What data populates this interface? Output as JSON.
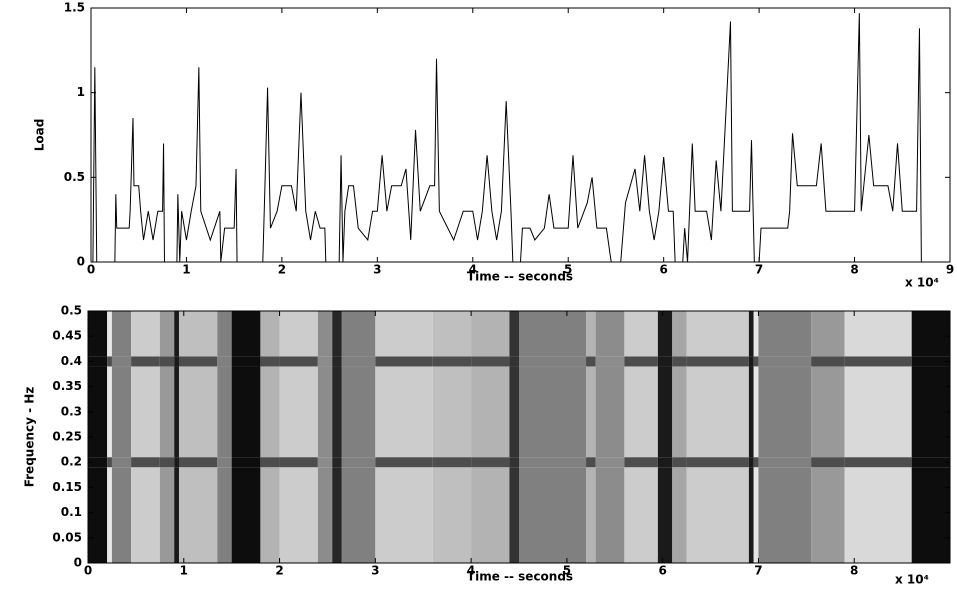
{
  "chart_data": [
    {
      "type": "line",
      "ylabel": "Load",
      "xlabel": "Time -- seconds",
      "x_multiplier": "x 10⁴",
      "xlim": [
        0,
        9
      ],
      "xticks": [
        0,
        1,
        2,
        3,
        4,
        5,
        6,
        7,
        8,
        9
      ],
      "ylim": [
        0,
        1.5
      ],
      "yticks": [
        0,
        0.5,
        1,
        1.5
      ],
      "color": "#000000",
      "x": [
        0.02,
        0.04,
        0.06,
        0.25,
        0.26,
        0.27,
        0.4,
        0.41,
        0.44,
        0.45,
        0.5,
        0.52,
        0.55,
        0.6,
        0.65,
        0.7,
        0.75,
        0.76,
        0.77,
        0.9,
        0.91,
        0.93,
        0.95,
        1.0,
        1.05,
        1.1,
        1.13,
        1.15,
        1.25,
        1.35,
        1.36,
        1.4,
        1.5,
        1.52,
        1.53,
        1.8,
        1.82,
        1.85,
        1.88,
        1.95,
        2.0,
        2.1,
        2.15,
        2.2,
        2.25,
        2.3,
        2.35,
        2.4,
        2.45,
        2.46,
        2.6,
        2.62,
        2.64,
        2.66,
        2.7,
        2.75,
        2.8,
        2.9,
        2.95,
        3.0,
        3.05,
        3.1,
        3.15,
        3.25,
        3.3,
        3.35,
        3.4,
        3.45,
        3.55,
        3.6,
        3.62,
        3.65,
        3.8,
        3.9,
        4.0,
        4.05,
        4.1,
        4.15,
        4.2,
        4.25,
        4.3,
        4.35,
        4.4,
        4.42,
        4.5,
        4.52,
        4.6,
        4.65,
        4.75,
        4.8,
        4.85,
        5.0,
        5.05,
        5.1,
        5.2,
        5.25,
        5.3,
        5.4,
        5.45,
        5.55,
        5.6,
        5.65,
        5.7,
        5.75,
        5.8,
        5.85,
        5.9,
        5.95,
        6.0,
        6.05,
        6.1,
        6.12,
        6.2,
        6.22,
        6.25,
        6.3,
        6.33,
        6.45,
        6.5,
        6.55,
        6.6,
        6.7,
        6.72,
        6.85,
        6.9,
        6.92,
        6.95,
        7.0,
        7.02,
        7.3,
        7.32,
        7.35,
        7.4,
        7.6,
        7.65,
        7.7,
        8.0,
        8.05,
        8.07,
        8.15,
        8.2,
        8.35,
        8.4,
        8.45,
        8.5,
        8.65,
        8.68,
        8.7
      ],
      "values": [
        0,
        1.15,
        0,
        0,
        0.4,
        0.2,
        0.2,
        0.3,
        0.85,
        0.45,
        0.45,
        0.3,
        0.13,
        0.3,
        0.13,
        0.3,
        0.3,
        0.7,
        0,
        0,
        0.4,
        0,
        0.3,
        0.13,
        0.3,
        0.45,
        1.15,
        0.3,
        0.13,
        0.3,
        0,
        0.2,
        0.2,
        0.55,
        0,
        0,
        0.4,
        1.03,
        0.2,
        0.3,
        0.45,
        0.45,
        0.3,
        1.0,
        0.3,
        0.13,
        0.3,
        0.2,
        0.2,
        0,
        0,
        0.63,
        0,
        0.3,
        0.45,
        0.45,
        0.2,
        0.13,
        0.3,
        0.3,
        0.63,
        0.3,
        0.45,
        0.45,
        0.55,
        0.13,
        0.78,
        0.3,
        0.45,
        0.45,
        1.2,
        0.3,
        0.13,
        0.3,
        0.3,
        0.13,
        0.3,
        0.63,
        0.3,
        0.13,
        0.3,
        0.95,
        0.3,
        0,
        0,
        0.2,
        0.2,
        0.13,
        0.2,
        0.4,
        0.2,
        0.2,
        0.63,
        0.2,
        0.35,
        0.5,
        0.2,
        0.2,
        0,
        0,
        0.35,
        0.45,
        0.55,
        0.3,
        0.63,
        0.3,
        0.13,
        0.3,
        0.62,
        0.3,
        0.3,
        0,
        0,
        0.2,
        0,
        0.7,
        0.3,
        0.3,
        0.13,
        0.6,
        0.3,
        1.42,
        0.3,
        0.3,
        0.3,
        0.72,
        0,
        0,
        0.2,
        0.2,
        0.3,
        0.76,
        0.45,
        0.45,
        0.7,
        0.3,
        0.3,
        1.47,
        0.3,
        0.75,
        0.45,
        0.45,
        0.3,
        0.7,
        0.3,
        0.3,
        1.38,
        0
      ]
    },
    {
      "type": "heatmap",
      "ylabel": "Frequency - Hz",
      "xlabel": "Time -- seconds",
      "x_multiplier": "x 10⁴",
      "xlim": [
        0,
        9
      ],
      "xticks": [
        0,
        1,
        2,
        3,
        4,
        5,
        6,
        7,
        8
      ],
      "ylim": [
        0,
        0.5
      ],
      "yticks": [
        0,
        0.05,
        0.1,
        0.15,
        0.2,
        0.25,
        0.3,
        0.35,
        0.4,
        0.45,
        0.5
      ],
      "x_bins": [
        0,
        0.2,
        0.25,
        0.45,
        0.75,
        0.9,
        0.95,
        1.35,
        1.5,
        1.8,
        2.0,
        2.4,
        2.55,
        2.65,
        3.0,
        3.6,
        4.0,
        4.4,
        4.5,
        5.2,
        5.3,
        5.6,
        5.95,
        6.1,
        6.25,
        6.9,
        6.95,
        7.0,
        7.55,
        7.9,
        8.6,
        9.0
      ],
      "y_bins": [
        0,
        0.19,
        0.21,
        0.39,
        0.41,
        0.5
      ],
      "values": [
        [
          0.05,
          0.9,
          0.5,
          0.8,
          0.6,
          0.1,
          0.75,
          0.5,
          0.05,
          0.7,
          0.8,
          0.55,
          0.15,
          0.5,
          0.8,
          0.75,
          0.7,
          0.2,
          0.5,
          0.7,
          0.55,
          0.8,
          0.1,
          0.65,
          0.8,
          0.1,
          0.9,
          0.5,
          0.6,
          0.85,
          0.05
        ],
        [
          0.05,
          0.3,
          0.5,
          0.3,
          0.3,
          0.1,
          0.3,
          0.5,
          0.05,
          0.3,
          0.3,
          0.55,
          0.15,
          0.5,
          0.3,
          0.3,
          0.3,
          0.2,
          0.5,
          0.3,
          0.55,
          0.3,
          0.1,
          0.3,
          0.3,
          0.1,
          0.3,
          0.5,
          0.3,
          0.3,
          0.05
        ],
        [
          0.05,
          0.9,
          0.5,
          0.8,
          0.6,
          0.1,
          0.75,
          0.5,
          0.05,
          0.7,
          0.8,
          0.55,
          0.15,
          0.5,
          0.8,
          0.75,
          0.7,
          0.2,
          0.5,
          0.7,
          0.55,
          0.8,
          0.1,
          0.65,
          0.8,
          0.1,
          0.9,
          0.5,
          0.6,
          0.85,
          0.05
        ],
        [
          0.05,
          0.3,
          0.5,
          0.3,
          0.3,
          0.1,
          0.3,
          0.5,
          0.05,
          0.3,
          0.3,
          0.55,
          0.15,
          0.5,
          0.3,
          0.3,
          0.3,
          0.2,
          0.5,
          0.3,
          0.55,
          0.3,
          0.1,
          0.3,
          0.3,
          0.1,
          0.3,
          0.5,
          0.3,
          0.3,
          0.05
        ],
        [
          0.05,
          0.9,
          0.5,
          0.8,
          0.6,
          0.1,
          0.75,
          0.5,
          0.05,
          0.7,
          0.8,
          0.55,
          0.15,
          0.5,
          0.8,
          0.75,
          0.7,
          0.2,
          0.5,
          0.7,
          0.55,
          0.8,
          0.1,
          0.65,
          0.8,
          0.1,
          0.9,
          0.5,
          0.6,
          0.85,
          0.05
        ]
      ]
    }
  ]
}
